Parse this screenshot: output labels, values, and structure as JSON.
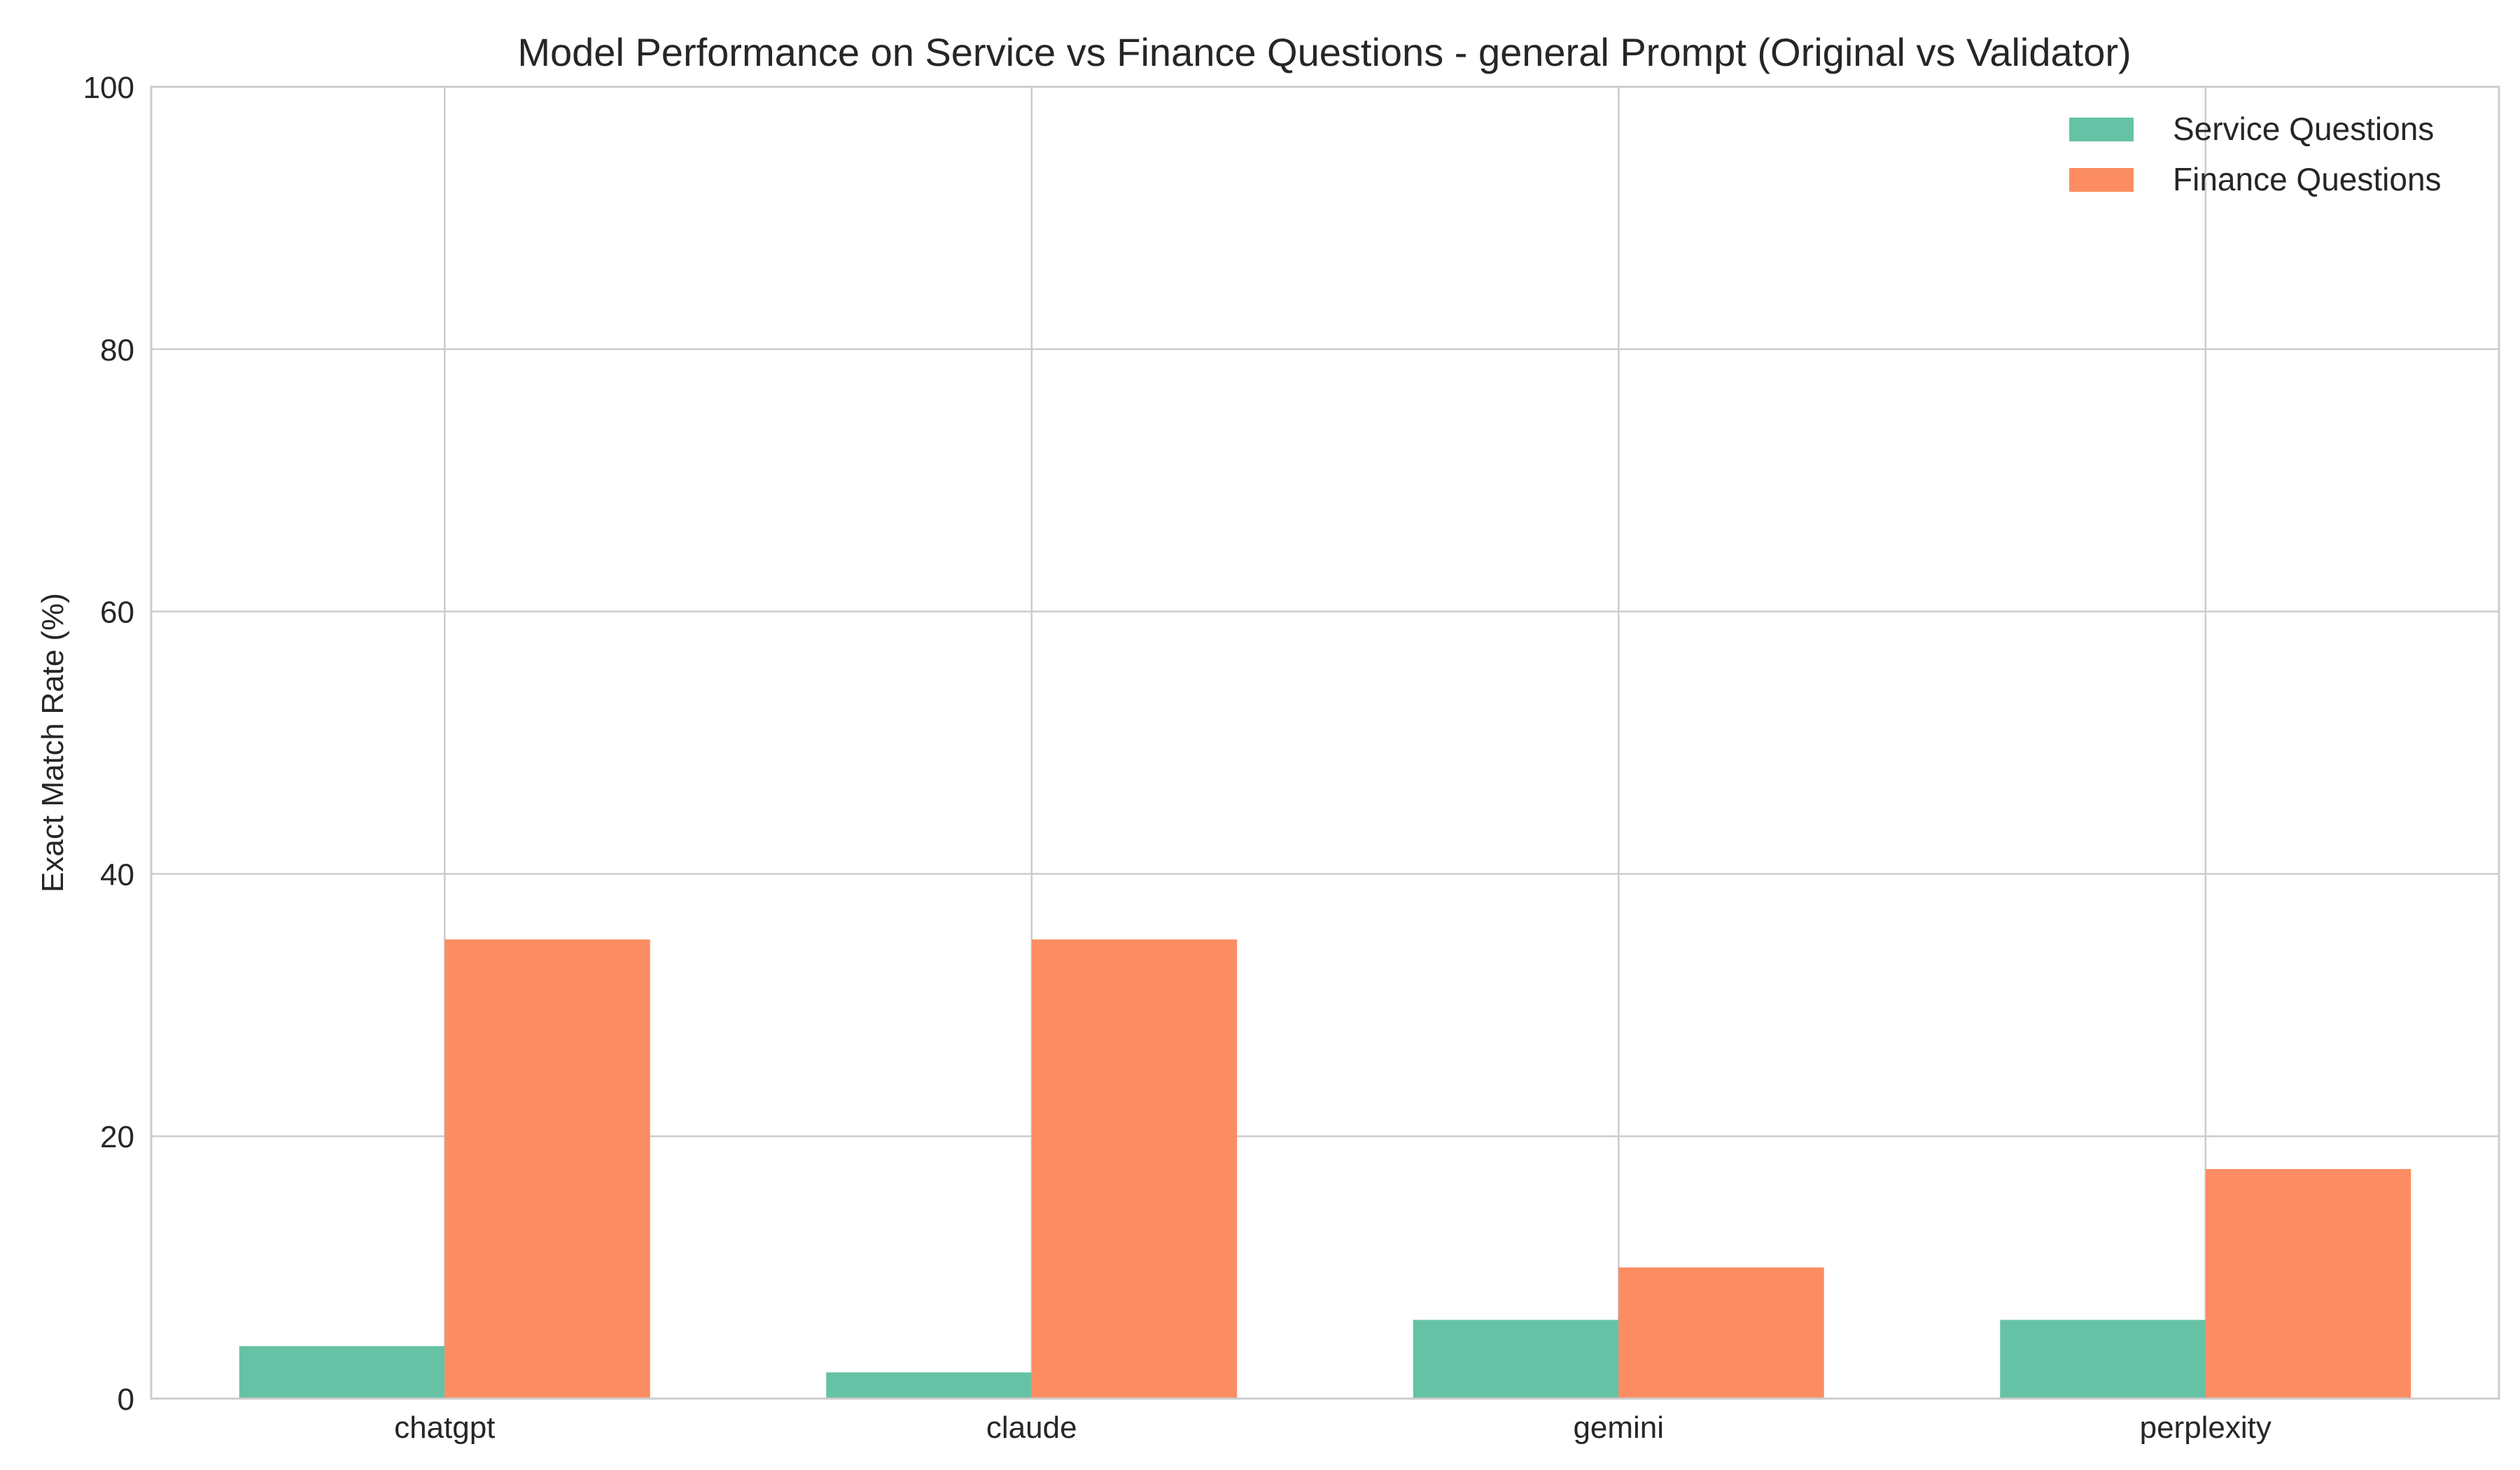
{
  "chart_data": {
    "type": "bar",
    "title": "Model Performance on Service vs Finance Questions - general Prompt (Original vs Validator)",
    "xlabel": "",
    "ylabel": "Exact Match Rate (%)",
    "ylim": [
      0,
      100
    ],
    "yticks": [
      0,
      20,
      40,
      60,
      80,
      100
    ],
    "categories": [
      "chatgpt",
      "claude",
      "gemini",
      "perplexity"
    ],
    "series": [
      {
        "name": "Service Questions",
        "color": "#66c2a5",
        "values": [
          4,
          2,
          6,
          6
        ]
      },
      {
        "name": "Finance Questions",
        "color": "#fc8d62",
        "values": [
          35,
          35,
          10,
          17.5
        ]
      }
    ],
    "grid": true,
    "legend_position": "top-right"
  }
}
